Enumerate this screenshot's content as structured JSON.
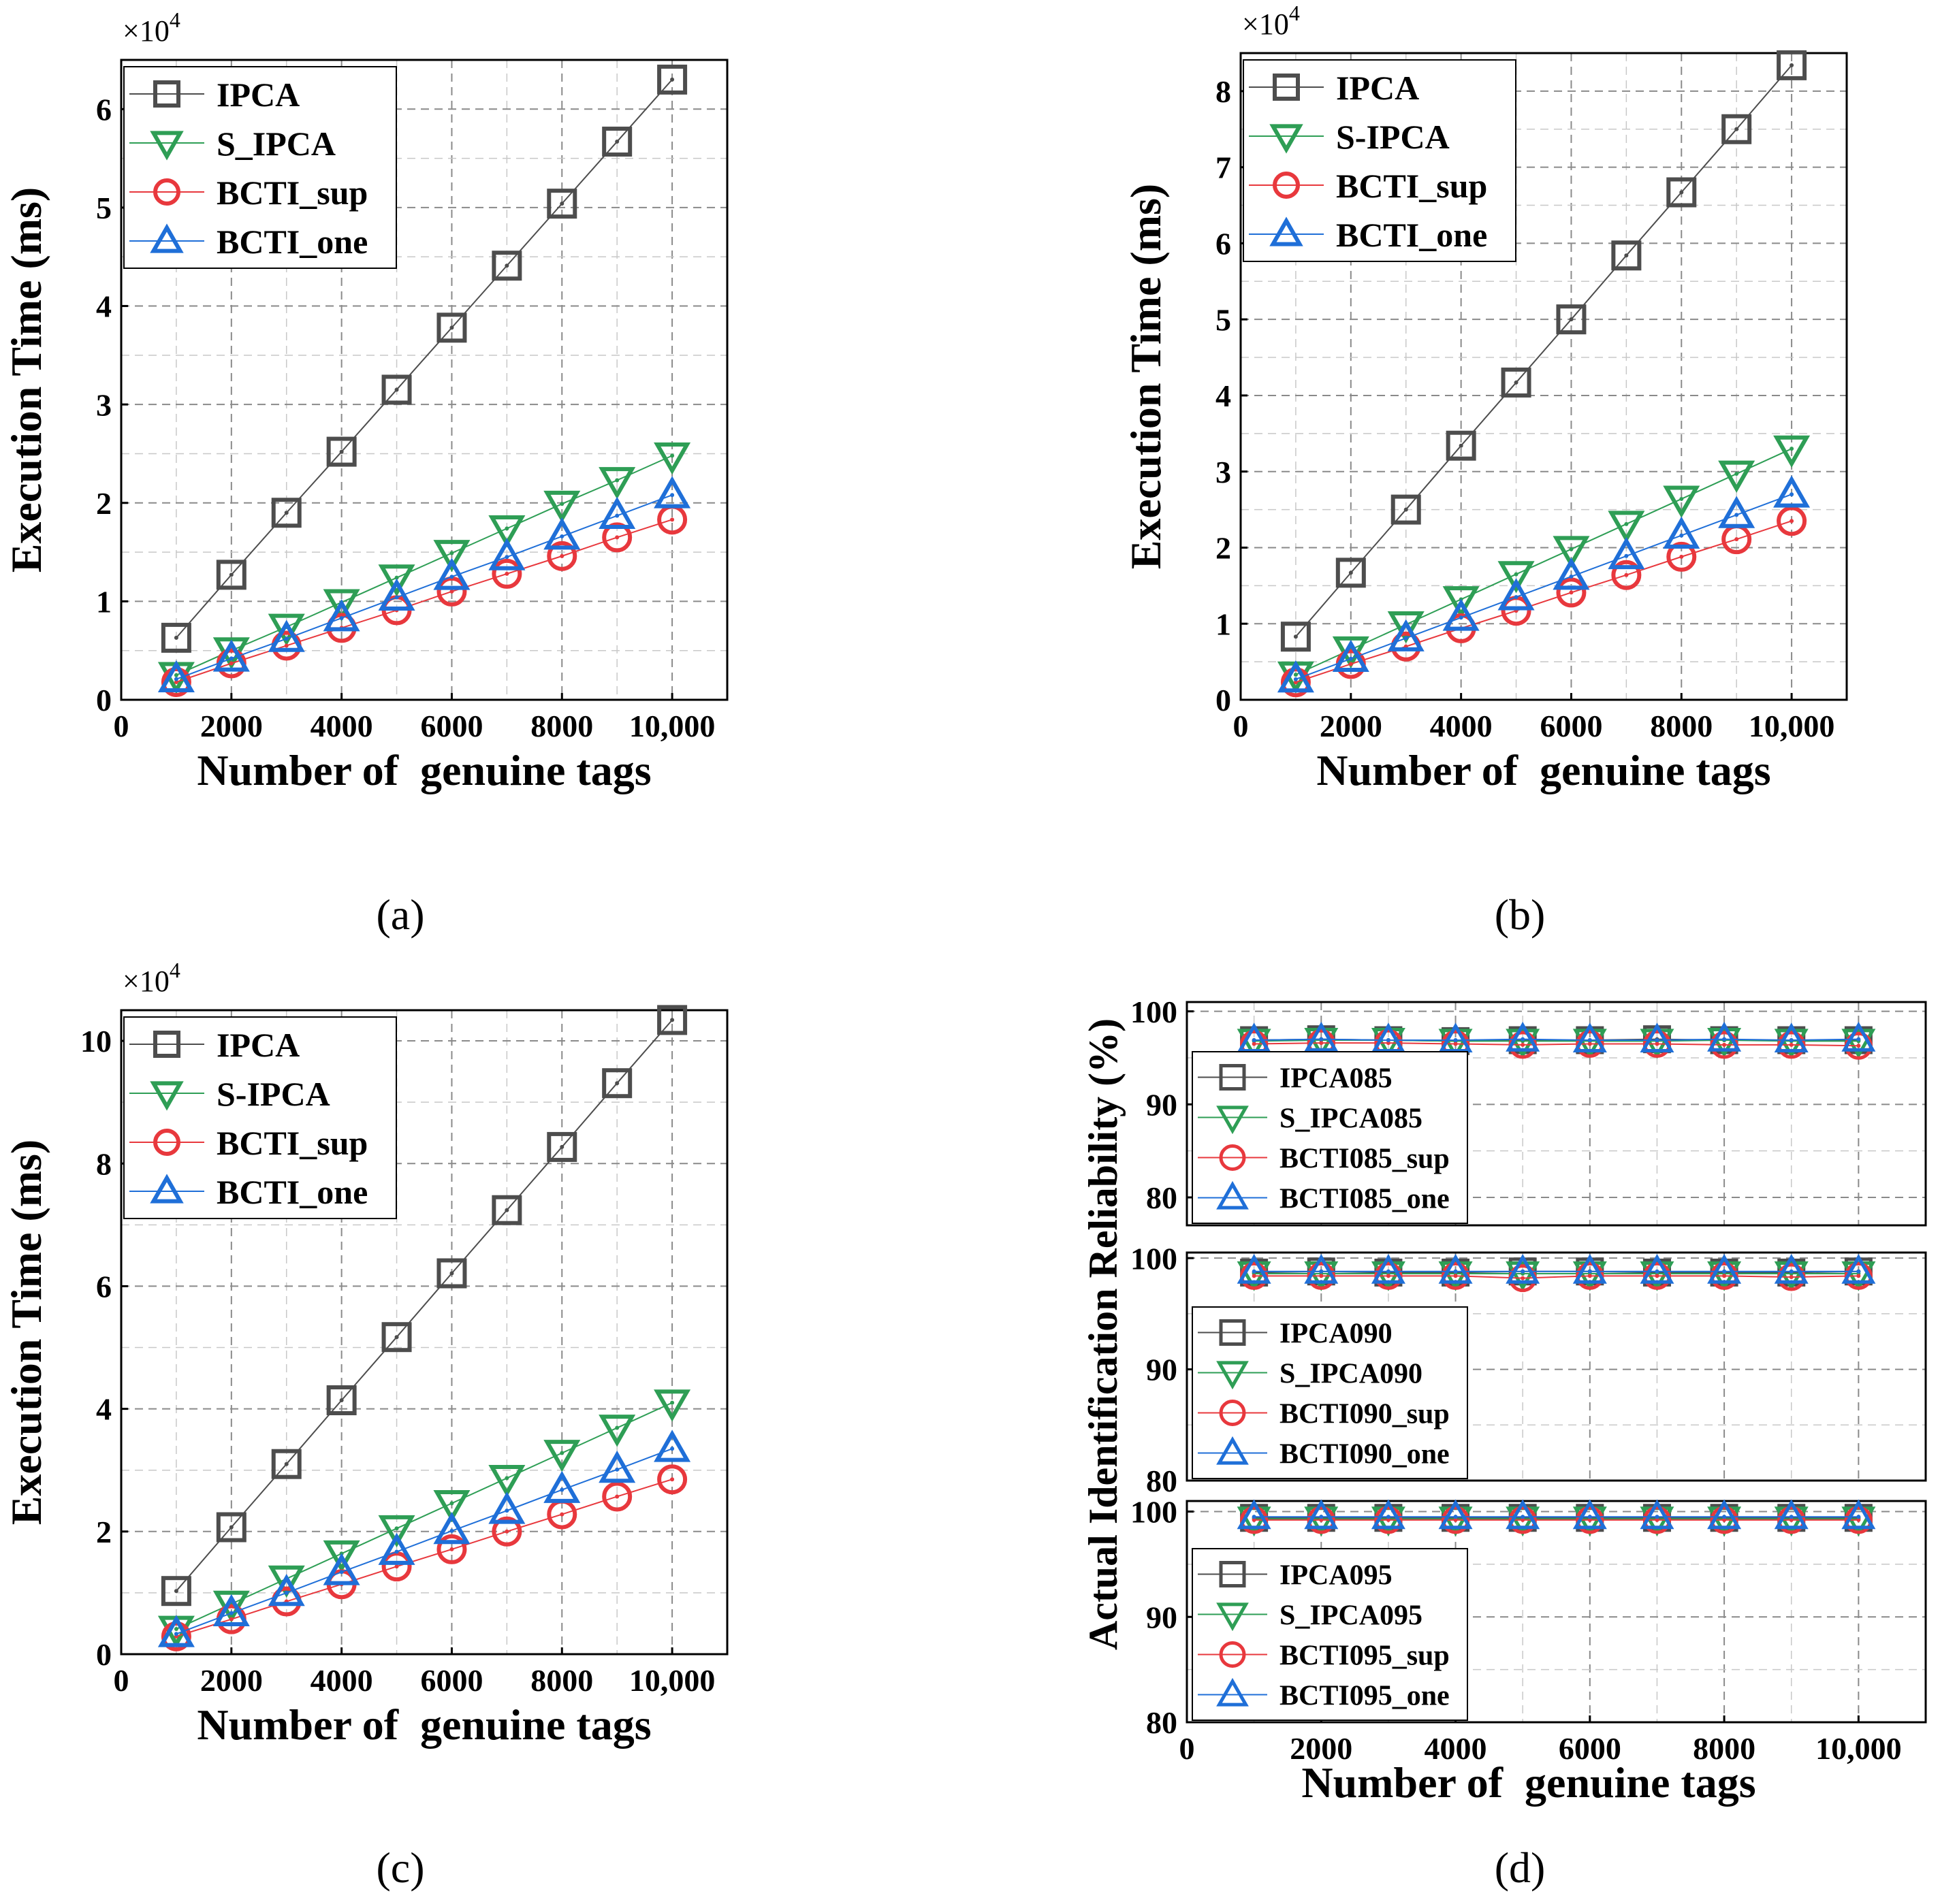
{
  "figure": {
    "panel_labels": [
      "(a)",
      "(b)",
      "(c)",
      "(d)"
    ]
  },
  "colors": {
    "IPCA": "#4d4d4d",
    "S_IPCA": "#2e9e55",
    "BCTI_sup": "#e8383d",
    "BCTI_one": "#1f6fd8"
  },
  "chart_data": [
    {
      "type": "line",
      "panel": "(a)",
      "xlabel": "Number of  genuine tags",
      "ylabel": "Execution Time (ms)",
      "y_multiplier": "×10",
      "y_exponent": "4",
      "x": [
        1000,
        2000,
        3000,
        4000,
        5000,
        6000,
        7000,
        8000,
        9000,
        10000
      ],
      "xlim": [
        0,
        11000
      ],
      "xticks": [
        0,
        2000,
        4000,
        6000,
        8000,
        10000
      ],
      "xtick_labels": [
        "0",
        "2000",
        "4000",
        "6000",
        "8000",
        "10,000"
      ],
      "ylim": [
        0,
        6.5
      ],
      "yticks": [
        0,
        1,
        2,
        3,
        4,
        5,
        6
      ],
      "ytick_labels": [
        "0",
        "1",
        "2",
        "3",
        "4",
        "5",
        "6"
      ],
      "grid": true,
      "legend_position": "top-left",
      "series": [
        {
          "name": "IPCA",
          "marker": "square",
          "values": [
            0.63,
            1.27,
            1.9,
            2.52,
            3.15,
            3.78,
            4.41,
            5.04,
            5.67,
            6.3
          ]
        },
        {
          "name": "S_IPCA",
          "marker": "triangle-down",
          "values": [
            0.25,
            0.5,
            0.74,
            0.99,
            1.24,
            1.49,
            1.74,
            1.99,
            2.23,
            2.48
          ]
        },
        {
          "name": "BCTI_sup",
          "marker": "circle",
          "values": [
            0.18,
            0.37,
            0.55,
            0.73,
            0.91,
            1.1,
            1.28,
            1.46,
            1.65,
            1.83
          ]
        },
        {
          "name": "BCTI_one",
          "marker": "triangle-up",
          "values": [
            0.21,
            0.42,
            0.62,
            0.83,
            1.04,
            1.25,
            1.45,
            1.66,
            1.87,
            2.08
          ]
        }
      ]
    },
    {
      "type": "line",
      "panel": "(b)",
      "xlabel": "Number of  genuine tags",
      "ylabel": "Execution Time (ms)",
      "y_multiplier": "×10",
      "y_exponent": "4",
      "x": [
        1000,
        2000,
        3000,
        4000,
        5000,
        6000,
        7000,
        8000,
        9000,
        10000
      ],
      "xlim": [
        0,
        11000
      ],
      "xticks": [
        0,
        2000,
        4000,
        6000,
        8000,
        10000
      ],
      "xtick_labels": [
        "0",
        "2000",
        "4000",
        "6000",
        "8000",
        "10,000"
      ],
      "ylim": [
        0,
        8.5
      ],
      "yticks": [
        0,
        1,
        2,
        3,
        4,
        5,
        6,
        7,
        8
      ],
      "ytick_labels": [
        "0",
        "1",
        "2",
        "3",
        "4",
        "5",
        "6",
        "7",
        "8"
      ],
      "grid": true,
      "legend_position": "top-left",
      "series": [
        {
          "name": "IPCA",
          "marker": "square",
          "values": [
            0.83,
            1.67,
            2.5,
            3.34,
            4.17,
            5.0,
            5.84,
            6.67,
            7.5,
            8.34
          ]
        },
        {
          "name": "S-IPCA",
          "marker": "triangle-down",
          "values": [
            0.33,
            0.66,
            0.99,
            1.32,
            1.65,
            1.98,
            2.31,
            2.64,
            2.97,
            3.3
          ]
        },
        {
          "name": "BCTI_sup",
          "marker": "circle",
          "values": [
            0.23,
            0.47,
            0.7,
            0.94,
            1.17,
            1.41,
            1.64,
            1.88,
            2.11,
            2.35
          ]
        },
        {
          "name": "BCTI_one",
          "marker": "triangle-up",
          "values": [
            0.27,
            0.54,
            0.81,
            1.08,
            1.35,
            1.62,
            1.89,
            2.16,
            2.43,
            2.7
          ]
        }
      ]
    },
    {
      "type": "line",
      "panel": "(c)",
      "xlabel": "Number of  genuine tags",
      "ylabel": "Execution Time (ms)",
      "y_multiplier": "×10",
      "y_exponent": "4",
      "x": [
        1000,
        2000,
        3000,
        4000,
        5000,
        6000,
        7000,
        8000,
        9000,
        10000
      ],
      "xlim": [
        0,
        11000
      ],
      "xticks": [
        0,
        2000,
        4000,
        6000,
        8000,
        10000
      ],
      "xtick_labels": [
        "0",
        "2000",
        "4000",
        "6000",
        "8000",
        "10,000"
      ],
      "ylim": [
        0,
        10.5
      ],
      "yticks": [
        0,
        2,
        4,
        6,
        8,
        10
      ],
      "ytick_labels": [
        "0",
        "2",
        "4",
        "6",
        "8",
        "10"
      ],
      "grid": true,
      "legend_position": "top-left",
      "series": [
        {
          "name": "IPCA",
          "marker": "square",
          "values": [
            1.03,
            2.07,
            3.1,
            4.14,
            5.17,
            6.21,
            7.24,
            8.27,
            9.31,
            10.34
          ]
        },
        {
          "name": "S-IPCA",
          "marker": "triangle-down",
          "values": [
            0.41,
            0.82,
            1.23,
            1.64,
            2.05,
            2.46,
            2.87,
            3.28,
            3.69,
            4.1
          ]
        },
        {
          "name": "BCTI_sup",
          "marker": "circle",
          "values": [
            0.29,
            0.57,
            0.86,
            1.14,
            1.43,
            1.71,
            2.0,
            2.28,
            2.57,
            2.85
          ]
        },
        {
          "name": "BCTI_one",
          "marker": "triangle-up",
          "values": [
            0.33,
            0.67,
            1.0,
            1.34,
            1.67,
            2.01,
            2.34,
            2.68,
            3.01,
            3.35
          ]
        }
      ]
    },
    {
      "type": "line",
      "panel": "(d)",
      "xlabel": "Number of  genuine tags",
      "ylabel": "Actual Identification Reliability (%)",
      "x": [
        1000,
        2000,
        3000,
        4000,
        5000,
        6000,
        7000,
        8000,
        9000,
        10000
      ],
      "xlim": [
        0,
        11000
      ],
      "xticks": [
        0,
        2000,
        4000,
        6000,
        8000,
        10000
      ],
      "xtick_labels": [
        "0",
        "2000",
        "4000",
        "6000",
        "8000",
        "10,000"
      ],
      "grid": true,
      "subplots": [
        {
          "ylim": [
            77,
            101
          ],
          "yticks": [
            80,
            90,
            100
          ],
          "ytick_labels": [
            "80",
            "90",
            "100"
          ],
          "legend_position": "bottom-left",
          "series": [
            {
              "name": "IPCA085",
              "marker": "square",
              "values": [
                96.9,
                97.0,
                96.9,
                96.8,
                96.9,
                96.9,
                97.0,
                96.9,
                96.9,
                96.9
              ]
            },
            {
              "name": "S_IPCA085",
              "marker": "triangle-down",
              "values": [
                96.8,
                96.9,
                96.9,
                96.8,
                96.8,
                96.8,
                96.8,
                96.9,
                96.8,
                96.8
              ]
            },
            {
              "name": "BCTI085_sup",
              "marker": "circle",
              "values": [
                96.5,
                96.6,
                96.6,
                96.5,
                96.4,
                96.5,
                96.5,
                96.4,
                96.4,
                96.3
              ]
            },
            {
              "name": "BCTI085_one",
              "marker": "triangle-up",
              "values": [
                96.9,
                97.0,
                96.9,
                96.9,
                97.0,
                96.9,
                96.9,
                97.0,
                96.9,
                97.0
              ]
            }
          ]
        },
        {
          "ylim": [
            80,
            100.5
          ],
          "yticks": [
            80,
            90,
            100
          ],
          "ytick_labels": [
            "80",
            "90",
            "100"
          ],
          "legend_position": "bottom-left",
          "series": [
            {
              "name": "IPCA090",
              "marker": "square",
              "values": [
                98.7,
                98.8,
                98.7,
                98.7,
                98.8,
                98.8,
                98.7,
                98.7,
                98.7,
                98.8
              ]
            },
            {
              "name": "S_IPCA090",
              "marker": "triangle-down",
              "values": [
                98.6,
                98.6,
                98.6,
                98.6,
                98.6,
                98.6,
                98.6,
                98.6,
                98.6,
                98.6
              ]
            },
            {
              "name": "BCTI090_sup",
              "marker": "circle",
              "values": [
                98.4,
                98.4,
                98.4,
                98.4,
                98.2,
                98.4,
                98.4,
                98.4,
                98.3,
                98.4
              ]
            },
            {
              "name": "BCTI090_one",
              "marker": "triangle-up",
              "values": [
                98.8,
                98.8,
                98.8,
                98.8,
                98.8,
                98.8,
                98.8,
                98.8,
                98.8,
                98.8
              ]
            }
          ]
        },
        {
          "ylim": [
            80,
            101
          ],
          "yticks": [
            80,
            90,
            100
          ],
          "ytick_labels": [
            "80",
            "90",
            "100"
          ],
          "legend_position": "bottom-left",
          "series": [
            {
              "name": "IPCA095",
              "marker": "square",
              "values": [
                99.4,
                99.4,
                99.4,
                99.4,
                99.4,
                99.4,
                99.4,
                99.4,
                99.4,
                99.4
              ]
            },
            {
              "name": "S_IPCA095",
              "marker": "triangle-down",
              "values": [
                99.3,
                99.3,
                99.3,
                99.3,
                99.3,
                99.3,
                99.3,
                99.3,
                99.3,
                99.3
              ]
            },
            {
              "name": "BCTI095_sup",
              "marker": "circle",
              "values": [
                99.2,
                99.2,
                99.2,
                99.2,
                99.2,
                99.2,
                99.2,
                99.2,
                99.2,
                99.2
              ]
            },
            {
              "name": "BCTI095_one",
              "marker": "triangle-up",
              "values": [
                99.5,
                99.5,
                99.5,
                99.5,
                99.5,
                99.5,
                99.5,
                99.5,
                99.5,
                99.5
              ]
            }
          ]
        }
      ]
    }
  ]
}
